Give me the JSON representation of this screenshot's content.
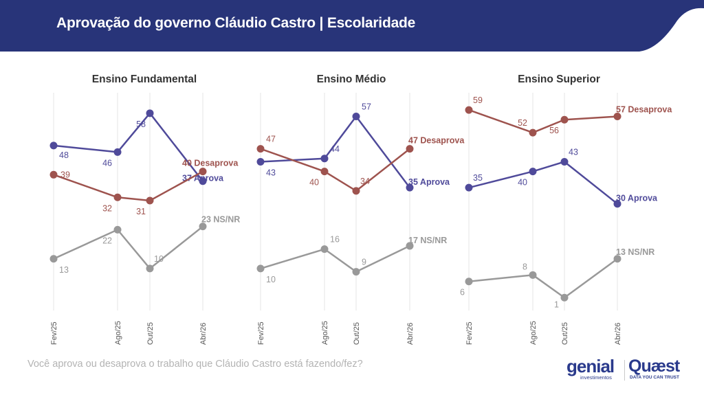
{
  "header": {
    "title": "Aprovação do governo Cláudio Castro | Escolaridade",
    "background_color": "#283479"
  },
  "footer": {
    "question": "Você aprova ou desaprova o trabalho que Cláudio Castro está fazendo/fez?",
    "logo_genial": "genial",
    "logo_genial_sub": "investimentos",
    "logo_quaest": "Quæst",
    "logo_quaest_sub": "DATA YOU CAN TRUST"
  },
  "colors": {
    "aprova": "#4f4a9a",
    "desaprova": "#9e534e",
    "nsnr": "#999999",
    "grid": "#e6e6e6",
    "panel_title": "#333333"
  },
  "chart_data": [
    {
      "type": "line",
      "title": "Ensino Fundamental",
      "categories": [
        "Fev/25",
        "Ago/25",
        "Out/25",
        "Abr/26"
      ],
      "series": [
        {
          "name": "Aprova",
          "values": [
            48,
            46,
            58,
            37
          ],
          "end_label": "37 Aprova"
        },
        {
          "name": "Desaprova",
          "values": [
            39,
            32,
            31,
            40
          ],
          "end_label": "40 Desaprova"
        },
        {
          "name": "NS/NR",
          "values": [
            13,
            22,
            10,
            23
          ],
          "end_label": "23 NS/NR"
        }
      ],
      "ylim": [
        0,
        65
      ],
      "grid": "vertical"
    },
    {
      "type": "line",
      "title": "Ensino Médio",
      "categories": [
        "Fev/25",
        "Ago/25",
        "Out/25",
        "Abr/26"
      ],
      "series": [
        {
          "name": "Aprova",
          "values": [
            43,
            44,
            57,
            35
          ],
          "end_label": "35 Aprova"
        },
        {
          "name": "Desaprova",
          "values": [
            47,
            40,
            34,
            47
          ],
          "end_label": "47 Desaprova"
        },
        {
          "name": "NS/NR",
          "values": [
            10,
            16,
            9,
            17
          ],
          "end_label": "17 NS/NR"
        }
      ],
      "ylim": [
        0,
        65
      ],
      "grid": "vertical"
    },
    {
      "type": "line",
      "title": "Ensino Superior",
      "categories": [
        "Fev/25",
        "Ago/25",
        "Out/25",
        "Abr/26"
      ],
      "series": [
        {
          "name": "Aprova",
          "values": [
            35,
            40,
            43,
            30
          ],
          "end_label": "30 Aprova"
        },
        {
          "name": "Desaprova",
          "values": [
            59,
            52,
            56,
            57
          ],
          "end_label": "57 Desaprova"
        },
        {
          "name": "NS/NR",
          "values": [
            6,
            8,
            1,
            13
          ],
          "end_label": "13 NS/NR"
        }
      ],
      "ylim": [
        0,
        65
      ],
      "grid": "vertical"
    }
  ]
}
